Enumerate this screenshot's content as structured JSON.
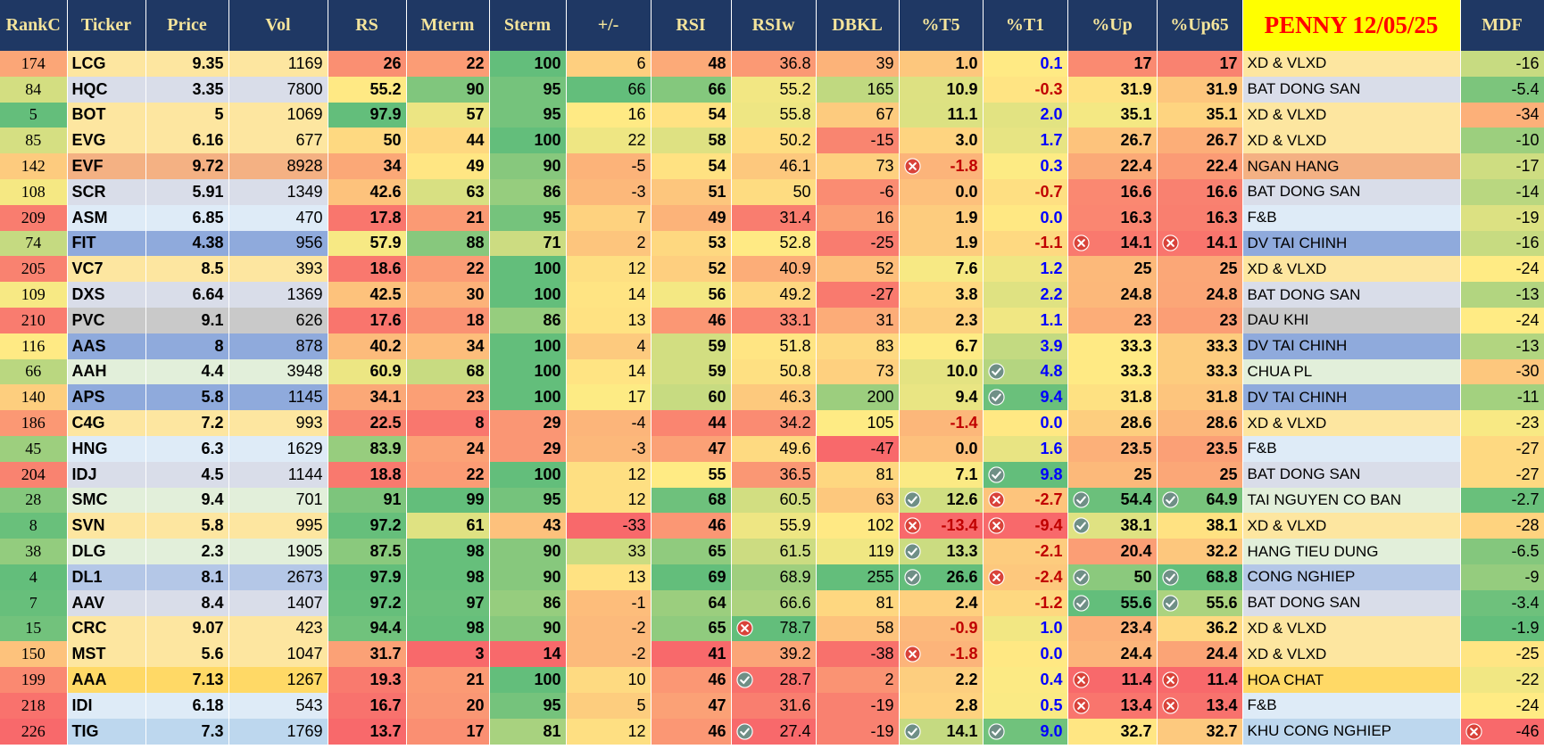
{
  "table": {
    "header": [
      "RankC",
      "Ticker",
      "Price",
      "Vol",
      "RS",
      "Mterm",
      "Sterm",
      "+/-",
      "RSI",
      "RSIw",
      "DBKL",
      "%T5",
      "%T1",
      "%Up",
      "%Up65",
      "PENNY 12/05/25",
      "MDF"
    ],
    "heat": [
      "low-green",
      null,
      null,
      null,
      "high-green",
      "high-green",
      "high-green",
      "high-green",
      "high-green",
      "high-green",
      "high-green",
      "high-green",
      "high-green",
      "high-green",
      "high-green",
      null,
      "high-green"
    ],
    "row_colors": [
      "#fde6a0",
      "#d9dde9",
      "#fde6a0",
      "#fde6a0",
      "#f4b183",
      "#d9dde9",
      "#deebf7",
      "#8faadc",
      "#fde6a0",
      "#d9dde9",
      "#c9c9c9",
      "#8faadc",
      "#e2efda",
      "#8faadc",
      "#fde6a0",
      "#deebf7",
      "#d9dde9",
      "#e2efda",
      "#fde6a0",
      "#e2efda",
      "#b4c7e7",
      "#d9dde9",
      "#fde6a0",
      "#fde6a0",
      "#ffd966",
      "#deebf7",
      "#bdd7ee"
    ],
    "rows": [
      [
        "174",
        "LCG",
        "9.35",
        "1169",
        "26",
        "22",
        "100",
        "6",
        "48",
        "36.8",
        "39",
        "1.0",
        "0.1",
        "17",
        "17",
        "XD & VLXD",
        "-16"
      ],
      [
        "84",
        "HQC",
        "3.35",
        "7800",
        "55.2",
        "90",
        "95",
        "66",
        "66",
        "55.2",
        "165",
        "10.9",
        "-0.3",
        "31.9",
        "31.9",
        "BAT DONG SAN",
        "-5.4"
      ],
      [
        "5",
        "BOT",
        "5",
        "1069",
        "97.9",
        "57",
        "95",
        "16",
        "54",
        "55.8",
        "67",
        "11.1",
        "2.0",
        "35.1",
        "35.1",
        "XD & VLXD",
        "-34"
      ],
      [
        "85",
        "EVG",
        "6.16",
        "677",
        "50",
        "44",
        "100",
        "22",
        "58",
        "50.2",
        "-15",
        "3.0",
        "1.7",
        "26.7",
        "26.7",
        "XD & VLXD",
        "-10"
      ],
      [
        "142",
        "EVF",
        "9.72",
        "8928",
        "34",
        "49",
        "90",
        "-5",
        "54",
        "46.1",
        "73",
        {
          "text": "-1.8",
          "icon": "no"
        },
        "0.3",
        "22.4",
        "22.4",
        "NGAN HANG",
        "-17"
      ],
      [
        "108",
        "SCR",
        "5.91",
        "1349",
        "42.6",
        "63",
        "86",
        "-3",
        "51",
        "50",
        "-6",
        "0.0",
        "-0.7",
        "16.6",
        "16.6",
        "BAT DONG SAN",
        "-14"
      ],
      [
        "209",
        "ASM",
        "6.85",
        "470",
        "17.8",
        "21",
        "95",
        "7",
        "49",
        "31.4",
        "16",
        "1.9",
        "0.0",
        "16.3",
        "16.3",
        "F&B",
        "-19"
      ],
      [
        "74",
        "FIT",
        "4.38",
        "956",
        "57.9",
        "88",
        "71",
        "2",
        "53",
        "52.8",
        "-25",
        "1.9",
        "-1.1",
        {
          "text": "14.1",
          "icon": "no"
        },
        {
          "text": "14.1",
          "icon": "no"
        },
        "DV TAI CHINH",
        "-16"
      ],
      [
        "205",
        "VC7",
        "8.5",
        "393",
        "18.6",
        "22",
        "100",
        "12",
        "52",
        "40.9",
        "52",
        "7.6",
        "1.2",
        "25",
        "25",
        "XD & VLXD",
        "-24"
      ],
      [
        "109",
        "DXS",
        "6.64",
        "1369",
        "42.5",
        "30",
        "100",
        "14",
        "56",
        "49.2",
        "-27",
        "3.8",
        "2.2",
        "24.8",
        "24.8",
        "BAT DONG SAN",
        "-13"
      ],
      [
        "210",
        "PVC",
        "9.1",
        "626",
        "17.6",
        "18",
        "86",
        "13",
        "46",
        "33.1",
        "31",
        "2.3",
        "1.1",
        "23",
        "23",
        "DAU KHI",
        "-24"
      ],
      [
        "116",
        "AAS",
        "8",
        "878",
        "40.2",
        "34",
        "100",
        "4",
        "59",
        "51.8",
        "83",
        "6.7",
        "3.9",
        "33.3",
        "33.3",
        "DV TAI CHINH",
        "-13"
      ],
      [
        "66",
        "AAH",
        "4.4",
        "3948",
        "60.9",
        "68",
        "100",
        "14",
        "59",
        "50.8",
        "73",
        "10.0",
        {
          "text": "4.8",
          "icon": "ok"
        },
        "33.3",
        "33.3",
        "CHUA PL",
        "-30"
      ],
      [
        "140",
        "APS",
        "5.8",
        "1145",
        "34.1",
        "23",
        "100",
        "17",
        "60",
        "46.3",
        "200",
        "9.4",
        {
          "text": "9.4",
          "icon": "ok"
        },
        "31.8",
        "31.8",
        "DV TAI CHINH",
        "-11"
      ],
      [
        "186",
        "C4G",
        "7.2",
        "993",
        "22.5",
        "8",
        "29",
        "-4",
        "44",
        "34.2",
        "105",
        "-1.4",
        "0.0",
        "28.6",
        "28.6",
        "XD & VLXD",
        "-23"
      ],
      [
        "45",
        "HNG",
        "6.3",
        "1629",
        "83.9",
        "24",
        "29",
        "-3",
        "47",
        "49.6",
        "-47",
        "0.0",
        "1.6",
        "23.5",
        "23.5",
        "F&B",
        "-27"
      ],
      [
        "204",
        "IDJ",
        "4.5",
        "1144",
        "18.8",
        "22",
        "100",
        "12",
        "55",
        "36.5",
        "81",
        "7.1",
        {
          "text": "9.8",
          "icon": "ok"
        },
        "25",
        "25",
        "BAT DONG SAN",
        "-27"
      ],
      [
        "28",
        "SMC",
        "9.4",
        "701",
        "91",
        "99",
        "95",
        "12",
        "68",
        "60.5",
        "63",
        {
          "text": "12.6",
          "icon": "ok"
        },
        {
          "text": "-2.7",
          "icon": "no"
        },
        {
          "text": "54.4",
          "icon": "ok"
        },
        {
          "text": "64.9",
          "icon": "ok"
        },
        "TAI NGUYEN CO BAN",
        "-2.7"
      ],
      [
        "8",
        "SVN",
        "5.8",
        "995",
        "97.2",
        "61",
        "43",
        "-33",
        "46",
        "55.9",
        "102",
        {
          "text": "-13.4",
          "icon": "no"
        },
        {
          "text": "-9.4",
          "icon": "no"
        },
        {
          "text": "38.1",
          "icon": "ok"
        },
        "38.1",
        "XD & VLXD",
        "-28"
      ],
      [
        "38",
        "DLG",
        "2.3",
        "1905",
        "87.5",
        "98",
        "90",
        "33",
        "65",
        "61.5",
        "119",
        {
          "text": "13.3",
          "icon": "ok"
        },
        "-2.1",
        "20.4",
        "32.2",
        "HANG TIEU DUNG",
        "-6.5"
      ],
      [
        "4",
        "DL1",
        "8.1",
        "2673",
        "97.9",
        "98",
        "90",
        "13",
        "69",
        "68.9",
        "255",
        {
          "text": "26.6",
          "icon": "ok"
        },
        {
          "text": "-2.4",
          "icon": "no"
        },
        {
          "text": "50",
          "icon": "ok"
        },
        {
          "text": "68.8",
          "icon": "ok"
        },
        "CONG NGHIEP",
        "-9"
      ],
      [
        "7",
        "AAV",
        "8.4",
        "1407",
        "97.2",
        "97",
        "86",
        "-1",
        "64",
        "66.6",
        "81",
        "2.4",
        "-1.2",
        {
          "text": "55.6",
          "icon": "ok"
        },
        {
          "text": "55.6",
          "icon": "ok"
        },
        "BAT DONG SAN",
        "-3.4"
      ],
      [
        "15",
        "CRC",
        "9.07",
        "423",
        "94.4",
        "98",
        "90",
        "-2",
        "65",
        {
          "text": "78.7",
          "icon": "no"
        },
        "58",
        "-0.9",
        "1.0",
        "23.4",
        "36.2",
        "XD & VLXD",
        "-1.9"
      ],
      [
        "150",
        "MST",
        "5.6",
        "1047",
        "31.7",
        "3",
        "14",
        "-2",
        "41",
        "39.2",
        "-38",
        {
          "text": "-1.8",
          "icon": "no"
        },
        "0.0",
        "24.4",
        "24.4",
        "XD & VLXD",
        "-25"
      ],
      [
        "199",
        "AAA",
        "7.13",
        "1267",
        "19.3",
        "21",
        "100",
        "10",
        "46",
        {
          "text": "28.7",
          "icon": "ok"
        },
        "2",
        "2.2",
        "0.4",
        {
          "text": "11.4",
          "icon": "no"
        },
        {
          "text": "11.4",
          "icon": "no"
        },
        "HOA CHAT",
        "-22"
      ],
      [
        "218",
        "IDI",
        "6.18",
        "543",
        "16.7",
        "20",
        "95",
        "5",
        "47",
        "31.6",
        "-19",
        "2.8",
        "0.5",
        {
          "text": "13.4",
          "icon": "no"
        },
        {
          "text": "13.4",
          "icon": "no"
        },
        "F&B",
        "-24"
      ],
      [
        "226",
        "TIG",
        "7.3",
        "1769",
        "13.7",
        "17",
        "81",
        "12",
        "46",
        {
          "text": "27.4",
          "icon": "ok"
        },
        "-19",
        {
          "text": "14.1",
          "icon": "ok"
        },
        {
          "text": "9.0",
          "icon": "ok"
        },
        "32.7",
        "32.7",
        "KHU CONG NGHIEP",
        {
          "text": "-46",
          "icon": "no"
        }
      ]
    ]
  }
}
